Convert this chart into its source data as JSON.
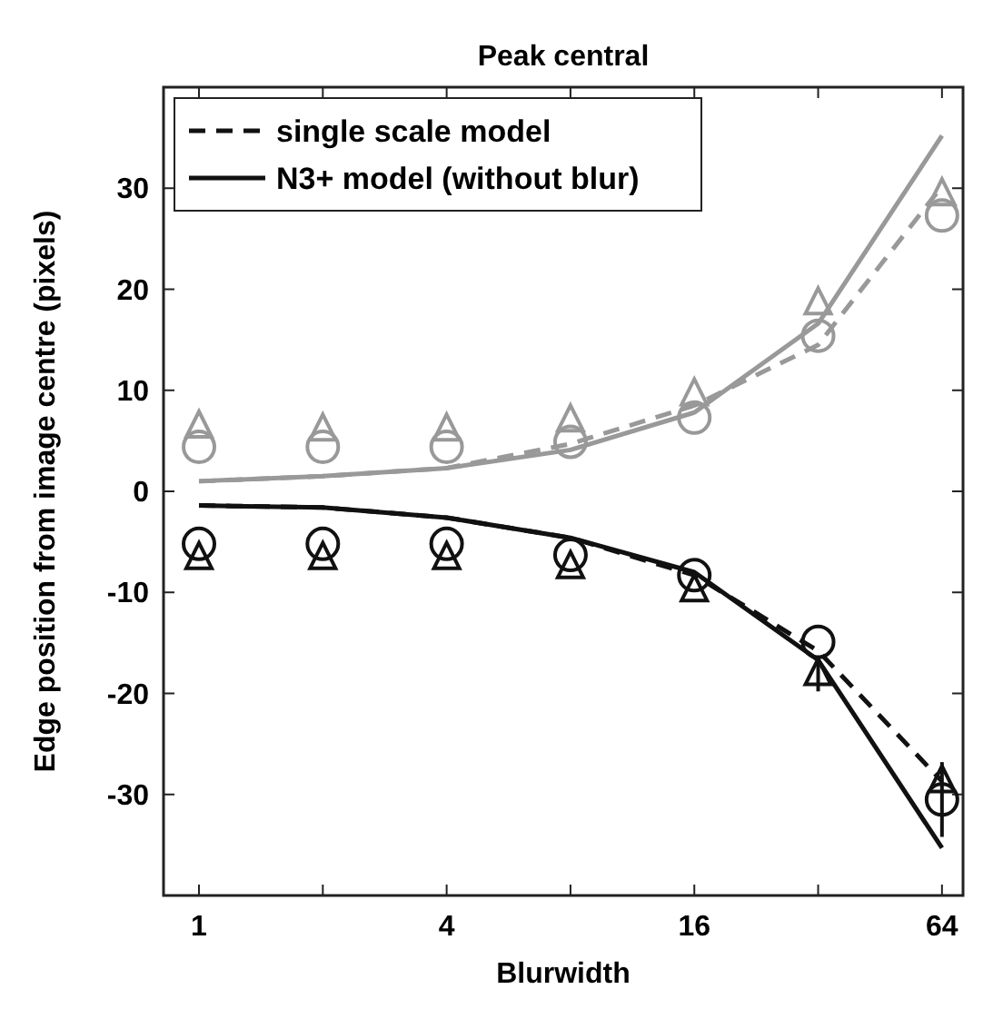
{
  "chart_data": {
    "type": "line",
    "title": "Peak central",
    "xlabel": "Blurwidth",
    "ylabel": "Edge position from image centre (pixels)",
    "log": "x",
    "x": [
      1,
      2,
      4,
      8,
      16,
      32,
      64
    ],
    "xlim": [
      0.82,
      72
    ],
    "xticks": [
      1,
      {
        "value": 2,
        "label": null
      },
      4,
      {
        "value": 8,
        "label": null
      },
      16,
      {
        "value": 32,
        "label": null
      },
      64
    ],
    "ylim": [
      -40,
      40
    ],
    "yticks": [
      {
        "value": -40,
        "label": null
      },
      -30,
      -20,
      -10,
      0,
      10,
      20,
      30,
      {
        "value": 40,
        "label": null
      }
    ],
    "grid": false,
    "legend": "top left",
    "series": [
      {
        "name": "single scale model",
        "color": "#111111",
        "line_style": "dashed",
        "marker": "none",
        "values": [
          -1.4,
          -1.6,
          -2.6,
          -4.6,
          -8.3,
          -15.8,
          -28.7
        ]
      },
      {
        "name": "N3+ model (without blur)",
        "color": "#111111",
        "line_style": "solid",
        "marker": "none",
        "values": [
          -1.4,
          -1.6,
          -2.6,
          -4.6,
          -8.0,
          -16.7,
          -35.3
        ]
      },
      {
        "color": "#999999",
        "line_style": "dashed",
        "marker": "none",
        "values": [
          1.0,
          1.5,
          2.3,
          4.7,
          8.5,
          14.5,
          30.2
        ]
      },
      {
        "color": "#999999",
        "line_style": "solid",
        "marker": "none",
        "values": [
          1.0,
          1.5,
          2.3,
          4.1,
          7.8,
          16.6,
          35.2
        ]
      },
      {
        "type": "scatter",
        "color": "#999999",
        "marker": "triangle",
        "values": [
          6.4,
          6.1,
          6.1,
          7.0,
          9.6,
          18.6,
          29.4
        ]
      },
      {
        "type": "scatter",
        "color": "#999999",
        "marker": "circle",
        "values": [
          4.4,
          4.4,
          4.4,
          4.9,
          7.3,
          15.4,
          27.3
        ]
      },
      {
        "type": "scatter",
        "color": "#111111",
        "marker": "triangle",
        "values": [
          -6.6,
          -6.6,
          -6.6,
          -7.5,
          -9.8,
          -18.1,
          -28.7
        ],
        "errors": [
          null,
          null,
          null,
          null,
          null,
          1.7,
          null
        ]
      },
      {
        "type": "scatter",
        "color": "#111111",
        "marker": "circle",
        "values": [
          -5.2,
          -5.2,
          -5.2,
          -6.3,
          -8.3,
          -14.9,
          -30.5
        ],
        "errors": [
          null,
          null,
          null,
          null,
          null,
          null,
          3.7
        ]
      }
    ]
  }
}
